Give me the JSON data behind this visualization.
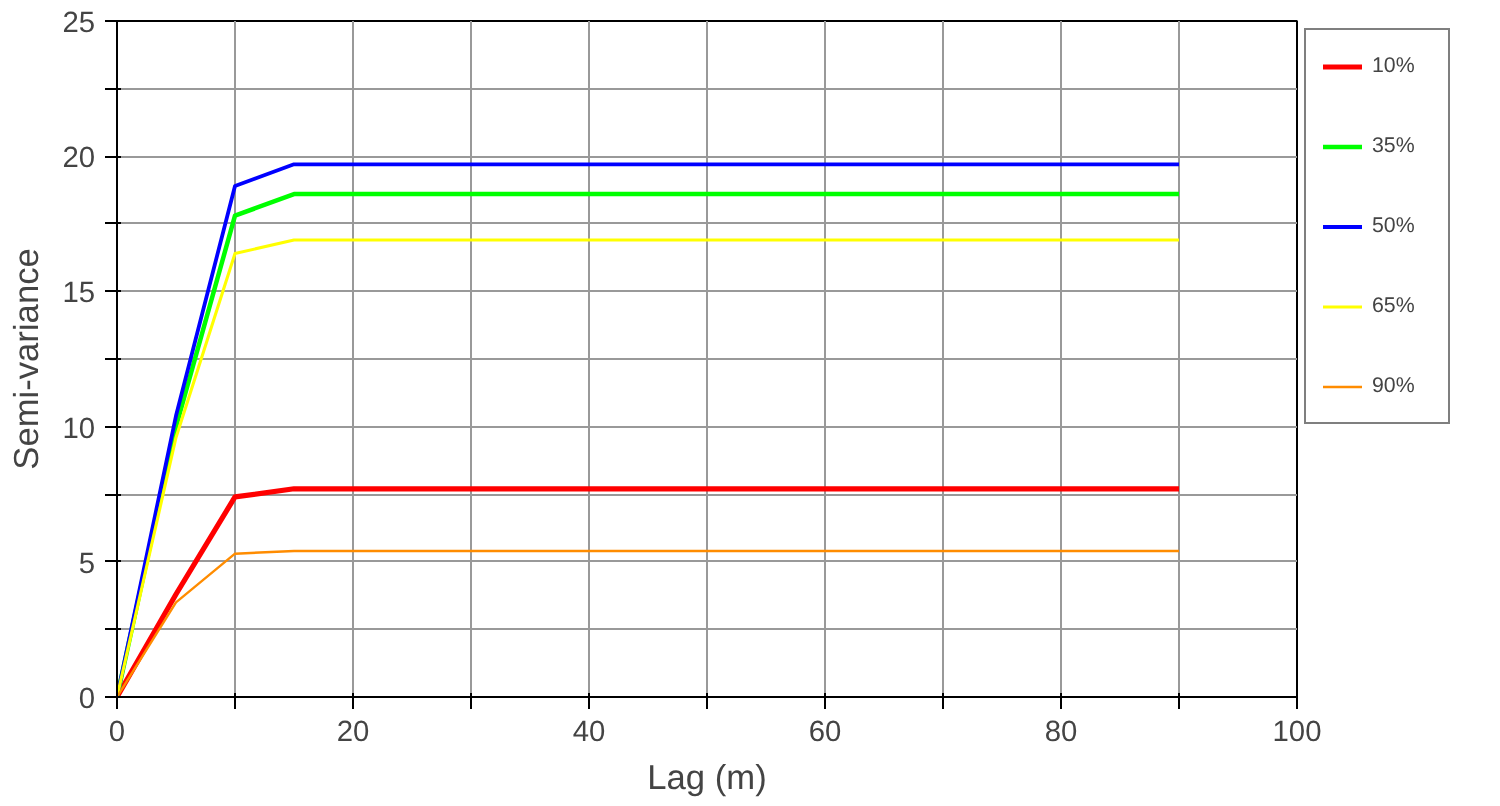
{
  "chart_data": {
    "type": "line",
    "xlabel": "Lag (m)",
    "ylabel": "Semi-variance",
    "x": [
      0,
      5,
      10,
      15,
      90
    ],
    "series": [
      {
        "name": "10%",
        "color": "#ff0000",
        "values": [
          0,
          3.8,
          7.4,
          7.7,
          7.7
        ]
      },
      {
        "name": "35%",
        "color": "#00ff00",
        "values": [
          0,
          10,
          17.8,
          18.6,
          18.6
        ]
      },
      {
        "name": "50%",
        "color": "#0000ff",
        "values": [
          0,
          10.4,
          18.9,
          19.7,
          19.7
        ]
      },
      {
        "name": "65%",
        "color": "#ffff00",
        "values": [
          0,
          9.6,
          16.4,
          16.9,
          16.9
        ]
      },
      {
        "name": "90%",
        "color": "#ff8c00",
        "values": [
          0,
          3.5,
          5.3,
          5.4,
          5.4
        ]
      }
    ],
    "xlim": [
      0,
      100
    ],
    "ylim": [
      0,
      25
    ],
    "xticks": [
      0,
      {
        "value": 10,
        "label": null
      },
      20,
      {
        "value": 30,
        "label": null
      },
      40,
      {
        "value": 50,
        "label": null
      },
      60,
      {
        "value": 70,
        "label": null
      },
      80,
      {
        "value": 90,
        "label": null
      },
      100
    ],
    "yticks": [
      0,
      {
        "value": 2.5,
        "label": null
      },
      5,
      {
        "value": 7.5,
        "label": null
      },
      10,
      {
        "value": 12.5,
        "label": null
      },
      15,
      {
        "value": 17.5,
        "label": null
      },
      20,
      {
        "value": 22.5,
        "label": null
      },
      25
    ],
    "grid": true,
    "legend": "right",
    "marker": "none",
    "line_style": "solid"
  }
}
